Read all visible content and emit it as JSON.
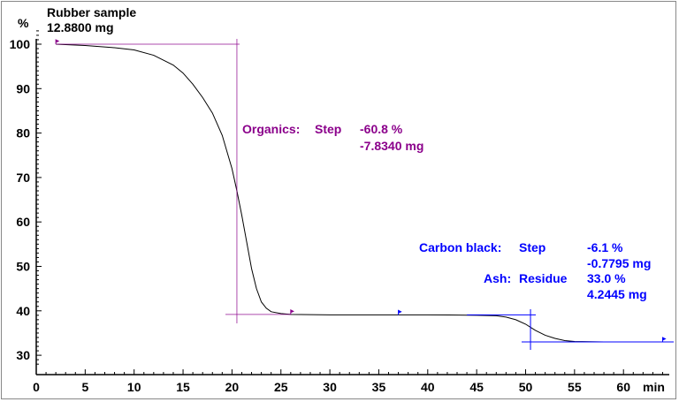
{
  "chart_data": {
    "type": "line",
    "title": "Rubber sample",
    "subtitle": "12.8800 mg",
    "xlabel": "min",
    "ylabel": "%",
    "xlim": [
      0,
      65
    ],
    "ylim": [
      28,
      103
    ],
    "xticks": [
      0,
      5,
      10,
      15,
      20,
      25,
      30,
      35,
      40,
      45,
      50,
      55,
      60
    ],
    "yticks": [
      30,
      40,
      50,
      60,
      70,
      80,
      90,
      100
    ],
    "grid": false,
    "series": [
      {
        "color": "#000000",
        "x": [
          2,
          5,
          8,
          10,
          12,
          14,
          15,
          16,
          17,
          18,
          19,
          20,
          20.5,
          21,
          21.5,
          22,
          22.5,
          23,
          23.5,
          24,
          25,
          26,
          30,
          40,
          45,
          47,
          48,
          49,
          50,
          50.5,
          51,
          52,
          53,
          54,
          55,
          58,
          62,
          64
        ],
        "y": [
          100,
          99.7,
          99.2,
          98.7,
          97.5,
          95.3,
          93.5,
          91,
          88,
          84.5,
          79.5,
          72,
          67,
          61.5,
          55.5,
          49.5,
          45,
          42,
          40.6,
          39.8,
          39.4,
          39.2,
          39.1,
          39.1,
          39.0,
          38.9,
          38.6,
          38,
          37,
          36.3,
          35.6,
          34.5,
          33.8,
          33.3,
          33.1,
          33,
          33,
          33
        ]
      }
    ],
    "annotations": {
      "color_organics": "#8B008B",
      "color_carbon": "#0000FF",
      "organics": {
        "label": "Organics:",
        "kind": "Step",
        "percent": "-60.8 %",
        "mass": "-7.8340 mg",
        "step_x": 20.5,
        "y_top": 100,
        "y_bottom": 39.2
      },
      "carbon_black": {
        "label": "Carbon black:",
        "kind": "Step",
        "percent": "-6.1 %",
        "mass": "-0.7795 mg",
        "step_x": 50.5,
        "y_top": 39.1,
        "y_bottom": 33
      },
      "ash": {
        "label": "Ash:",
        "kind": "Residue",
        "percent": "33.0 %",
        "mass": "4.2445 mg"
      }
    }
  }
}
